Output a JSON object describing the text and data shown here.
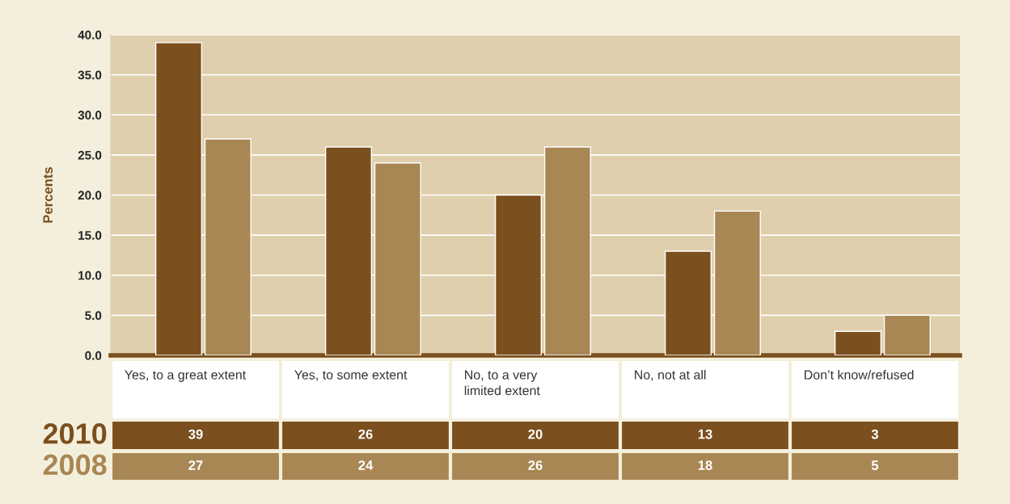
{
  "chart_data": {
    "type": "bar",
    "ylabel": "Percents",
    "categories": [
      "Yes, to a great extent",
      "Yes, to some extent",
      "No, to a very\nlimited extent",
      "No, not at all",
      "Don’t know/refused"
    ],
    "series": [
      {
        "name": "2010",
        "color": "#7b4f1e",
        "values": [
          39,
          26,
          20,
          13,
          3
        ]
      },
      {
        "name": "2008",
        "color": "#a88754",
        "values": [
          27,
          24,
          26,
          18,
          5
        ]
      }
    ],
    "ylim": [
      0,
      40
    ],
    "yticks": [
      {
        "value": 0,
        "label": "0.0"
      },
      {
        "value": 5,
        "label": "5.0"
      },
      {
        "value": 10,
        "label": "10.0"
      },
      {
        "value": 15,
        "label": "15.0"
      },
      {
        "value": 20,
        "label": "20.0"
      },
      {
        "value": 25,
        "label": "25.0"
      },
      {
        "value": 30,
        "label": "30.0"
      },
      {
        "value": 35,
        "label": "35.0"
      },
      {
        "value": 40,
        "label": "40.0"
      }
    ],
    "grid": "y",
    "data_labels": true,
    "legend": false
  }
}
